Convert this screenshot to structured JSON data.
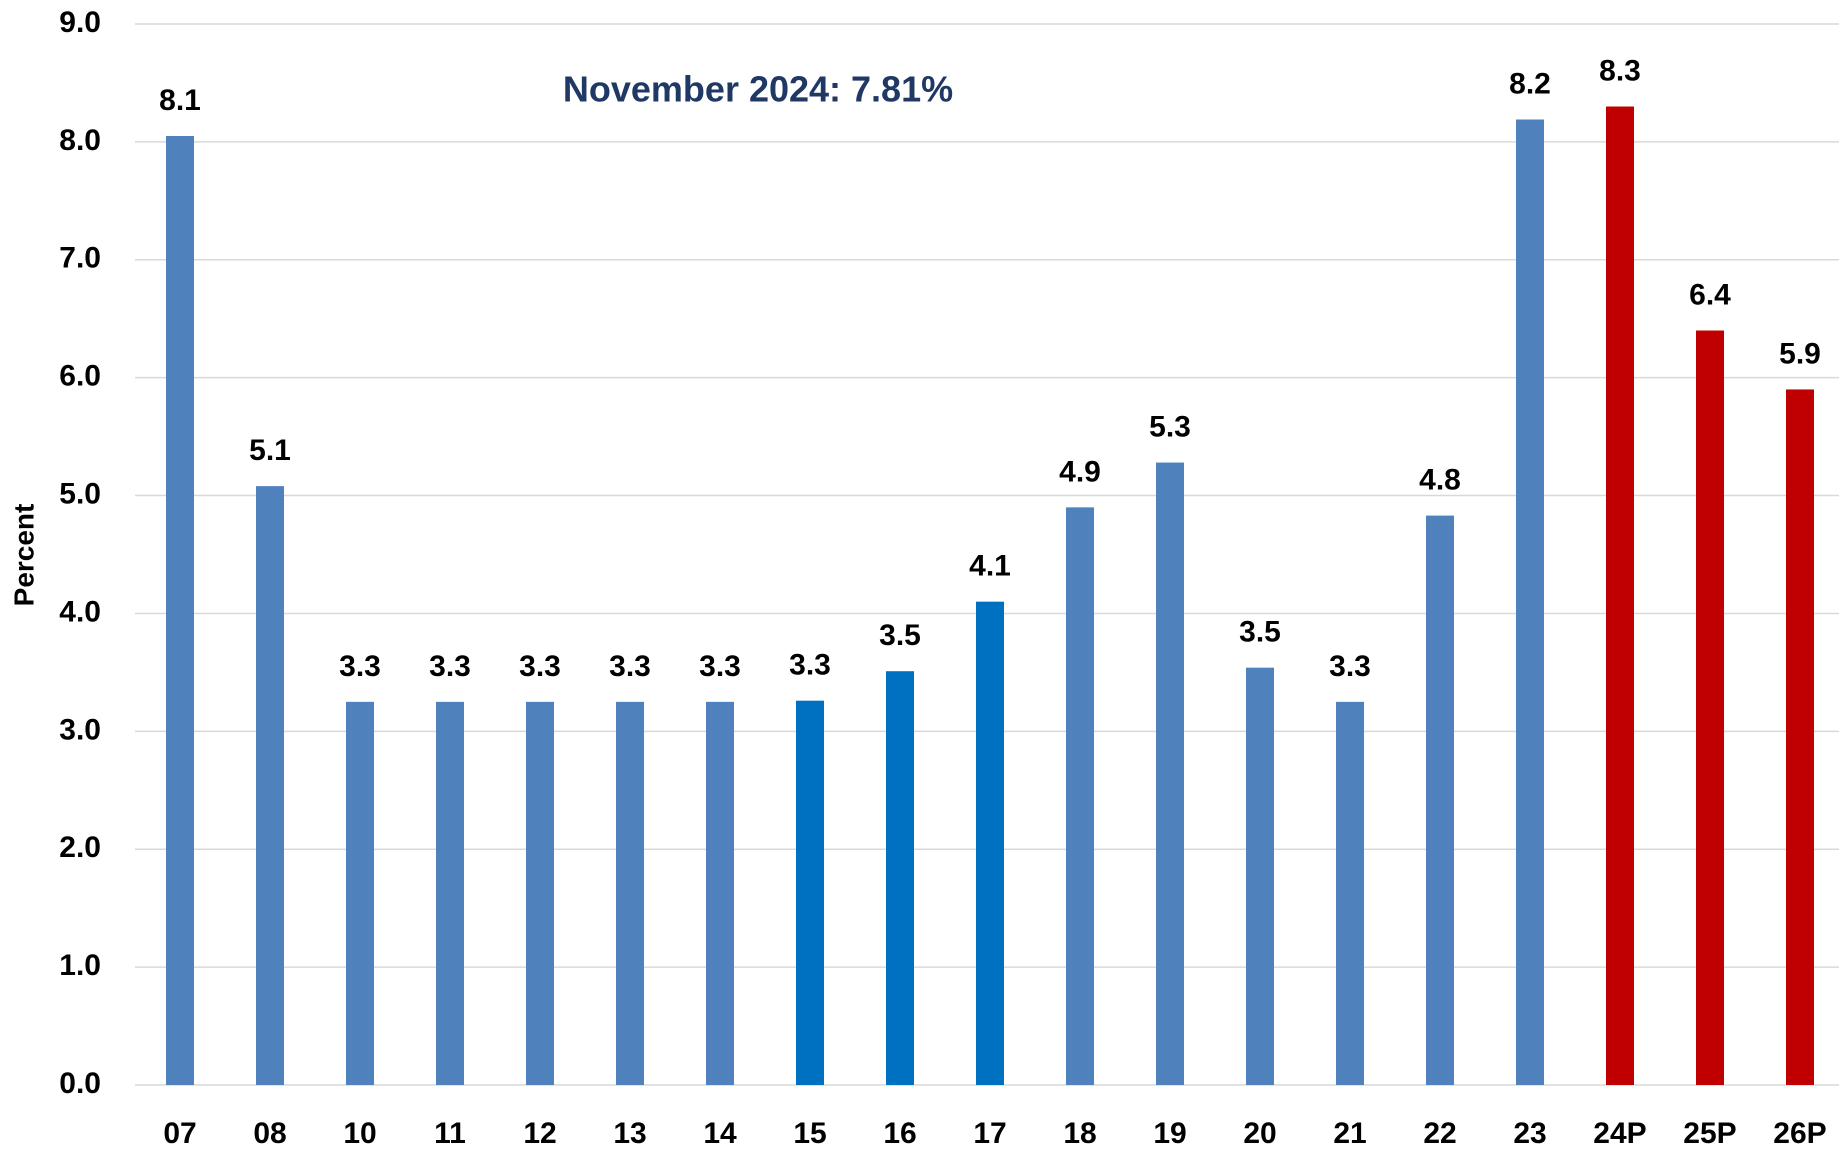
{
  "chart_data": {
    "type": "bar",
    "y_label": "Percent",
    "annotation": "November 2024:  7.81%",
    "categories": [
      "07",
      "08",
      "10",
      "11",
      "12",
      "13",
      "14",
      "15",
      "16",
      "17",
      "18",
      "19",
      "20",
      "21",
      "22",
      "23",
      "24P",
      "25P",
      "26P"
    ],
    "values": [
      8.05,
      5.08,
      3.25,
      3.25,
      3.25,
      3.25,
      3.25,
      3.26,
      3.51,
      4.1,
      4.9,
      5.28,
      3.54,
      3.25,
      4.83,
      8.19,
      8.3,
      6.4,
      5.9
    ],
    "value_labels": [
      "8.1",
      "5.1",
      "3.3",
      "3.3",
      "3.3",
      "3.3",
      "3.3",
      "3.3",
      "3.5",
      "4.1",
      "4.9",
      "5.3",
      "3.5",
      "3.3",
      "4.8",
      "8.2",
      "8.3",
      "6.4",
      "5.9"
    ],
    "colors": [
      "#4f81bd",
      "#4f81bd",
      "#4f81bd",
      "#4f81bd",
      "#4f81bd",
      "#4f81bd",
      "#4f81bd",
      "#0070c0",
      "#0070c0",
      "#0070c0",
      "#4f81bd",
      "#4f81bd",
      "#4f81bd",
      "#4f81bd",
      "#4f81bd",
      "#4f81bd",
      "#c00000",
      "#c00000",
      "#c00000"
    ],
    "ylim": [
      0,
      9
    ],
    "yticks": [
      {
        "value": 0,
        "label": "0.0"
      },
      {
        "value": 1,
        "label": "1.0"
      },
      {
        "value": 2,
        "label": "2.0"
      },
      {
        "value": 3,
        "label": "3.0"
      },
      {
        "value": 4,
        "label": "4.0"
      },
      {
        "value": 5,
        "label": "5.0"
      },
      {
        "value": 6,
        "label": "6.0"
      },
      {
        "value": 7,
        "label": "7.0"
      },
      {
        "value": 8,
        "label": "8.0"
      },
      {
        "value": 9,
        "label": "9.0"
      }
    ],
    "grid": true
  }
}
